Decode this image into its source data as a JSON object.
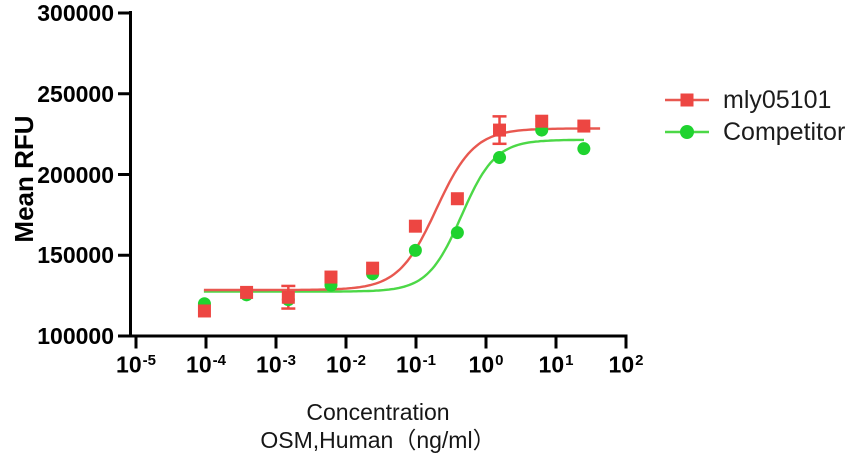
{
  "figure": {
    "background": "#ffffff",
    "axis_color": "#000000"
  },
  "y_axis": {
    "title": "Mean RFU",
    "tick_labels": [
      "300000",
      "250000",
      "200000",
      "150000",
      "100000"
    ],
    "tick_values": [
      300000,
      250000,
      200000,
      150000,
      100000
    ]
  },
  "x_axis": {
    "title_line1": "Concentration",
    "title_line2": "OSM,Human（ng/ml）",
    "base": "10",
    "tick_exponents": [
      "-5",
      "-4",
      "-3",
      "-2",
      "-1",
      "0",
      "1",
      "2"
    ]
  },
  "legend": [
    {
      "label": "mly05101",
      "marker": "square",
      "color": "#ED4642"
    },
    {
      "label": "Competitor",
      "marker": "circle",
      "color": "#1FD32F"
    }
  ],
  "chart_data": {
    "type": "scatter",
    "title": "",
    "xlabel": "Concentration OSM,Human（ng/ml）",
    "ylabel": "Mean RFU",
    "x_scale": "log10",
    "xlim_log10": [
      -5,
      2
    ],
    "ylim": [
      100000,
      300000
    ],
    "grid": false,
    "legend_position": "right",
    "concentrations_ng_ml": [
      9.5e-05,
      0.00038,
      0.0015,
      0.0061,
      0.024,
      0.098,
      0.39,
      1.56,
      6.25,
      25
    ],
    "series": [
      {
        "name": "mly05101",
        "marker": "square",
        "marker_color": "#ED4642",
        "line_color": "#E85850",
        "values": [
          115500,
          127000,
          124000,
          136500,
          142000,
          168000,
          185000,
          227500,
          233000,
          230000
        ],
        "errors": [
          0,
          0,
          7000,
          0,
          0,
          0,
          0,
          8500,
          0,
          0
        ],
        "fit_4pl": {
          "bottom": 128500,
          "top": 228500,
          "log_ec50": -0.71,
          "hill": 1.6
        },
        "curve_range_log10": [
          -4.03,
          1.63
        ]
      },
      {
        "name": "Competitor",
        "marker": "circle",
        "marker_color": "#1FD32F",
        "line_color": "#4CD847",
        "values": [
          120000,
          125500,
          122500,
          131500,
          138500,
          153000,
          164000,
          210500,
          227500,
          216000
        ],
        "errors": [
          0,
          0,
          0,
          0,
          0,
          0,
          0,
          0,
          0,
          0
        ],
        "fit_4pl": {
          "bottom": 127500,
          "top": 221500,
          "log_ec50": -0.35,
          "hill": 1.8
        },
        "curve_range_log10": [
          -4.03,
          1.4
        ]
      }
    ]
  }
}
